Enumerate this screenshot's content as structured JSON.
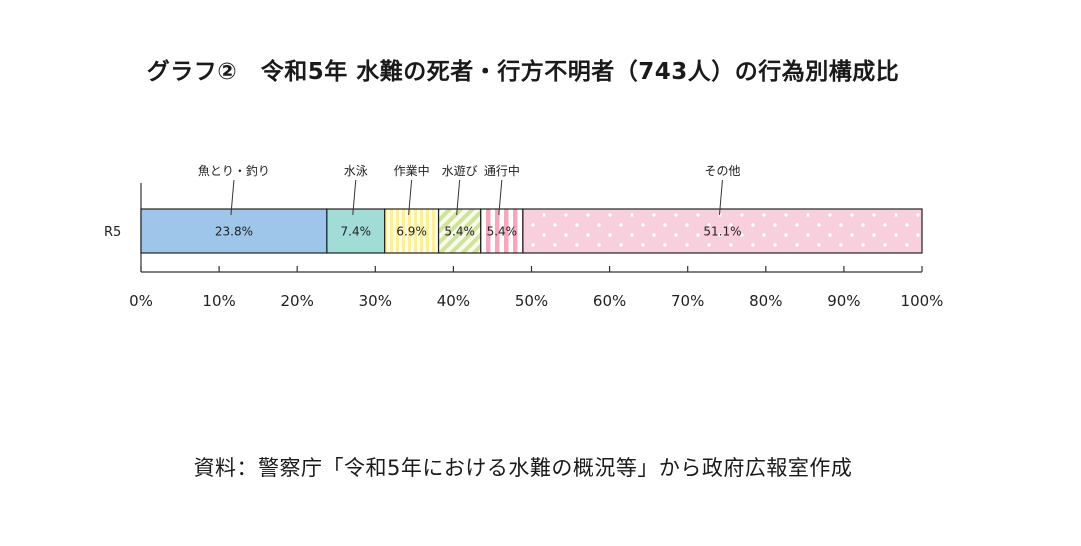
{
  "title": "グラフ②　令和5年 水難の死者・行方不明者（743人）の行為別構成比",
  "source": "資料：警察庁「令和5年における水難の概況等」から政府広報室作成",
  "chart_data": {
    "type": "bar",
    "orientation": "horizontal-stacked-100",
    "row_label": "R5",
    "xlim": [
      0,
      100
    ],
    "ticks": [
      "0%",
      "10%",
      "20%",
      "30%",
      "40%",
      "50%",
      "60%",
      "70%",
      "80%",
      "90%",
      "100%"
    ],
    "series": [
      {
        "name": "魚とり・釣り",
        "value": 23.8,
        "label": "23.8%",
        "color": "#9ec6ea",
        "pattern": "solid"
      },
      {
        "name": "水泳",
        "value": 7.4,
        "label": "7.4%",
        "color": "#a2dcd6",
        "pattern": "solid"
      },
      {
        "name": "作業中",
        "value": 6.9,
        "label": "6.9%",
        "color": "#fbee9e",
        "pattern": "v-stripes"
      },
      {
        "name": "水遊び",
        "value": 5.4,
        "label": "5.4%",
        "color": "#d4e6a8",
        "pattern": "diag-stripes"
      },
      {
        "name": "通行中",
        "value": 5.4,
        "label": "5.4%",
        "color": "#f5a7bd",
        "pattern": "v-stripes-wide"
      },
      {
        "name": "その他",
        "value": 51.1,
        "label": "51.1%",
        "color": "#f8cfdc",
        "pattern": "dots"
      }
    ]
  }
}
